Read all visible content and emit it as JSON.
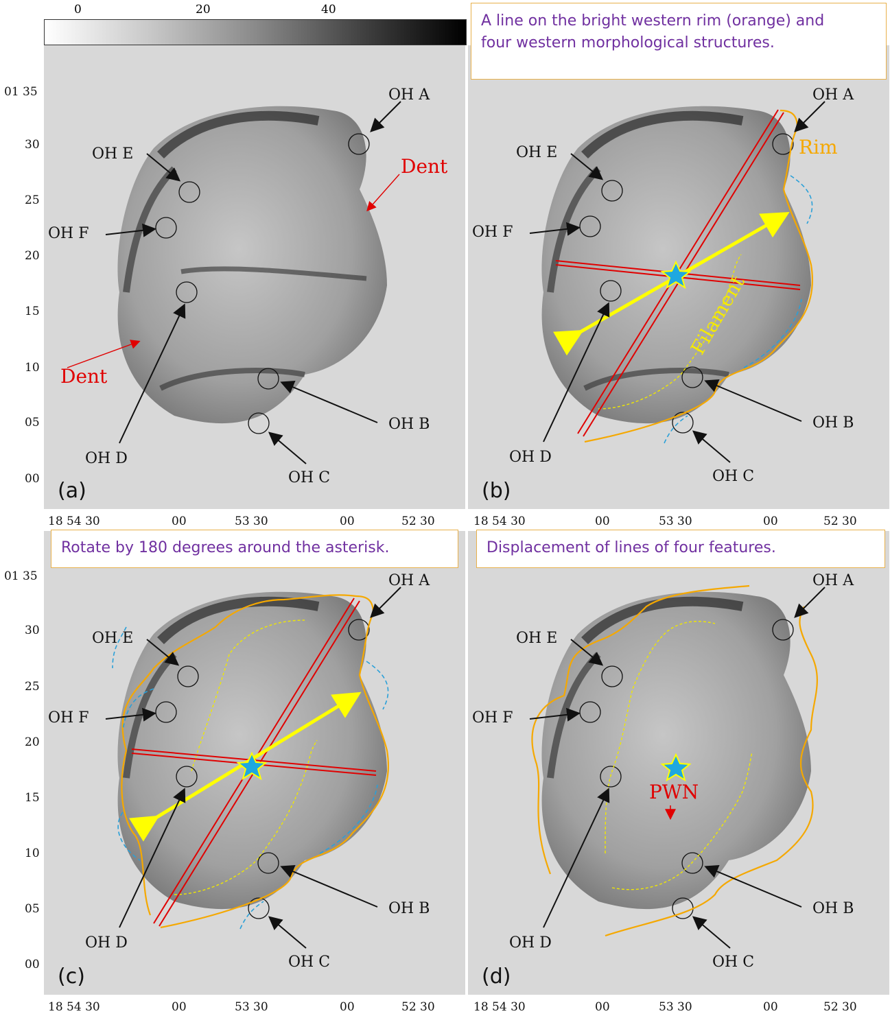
{
  "colorbar": {
    "ticks": [
      "0",
      "20",
      "40"
    ]
  },
  "y_ticks": [
    "01 35",
    "30",
    "25",
    "20",
    "15",
    "10",
    "05",
    "00"
  ],
  "x_ticks": [
    "18 54 30",
    "00",
    "53 30",
    "00",
    "52 30"
  ],
  "panels": {
    "a": {
      "label": "(a)",
      "dent_labels": [
        "Dent",
        "Dent"
      ]
    },
    "b": {
      "label": "(b)",
      "caption_line1": "A line on the bright western rim (orange) and",
      "caption_line2": "four western morphological structures.",
      "rim_label": "Rim",
      "filament_label": "Filament"
    },
    "c": {
      "label": "(c)",
      "caption": "Rotate by 180 degrees around the asterisk."
    },
    "d": {
      "label": "(d)",
      "caption": "Displacement of lines of four features.",
      "pwn_label": "PWN"
    }
  },
  "oh_labels": {
    "A": "OH A",
    "B": "OH B",
    "C": "OH C",
    "D": "OH D",
    "E": "OH E",
    "F": "OH F"
  },
  "colors": {
    "rim": "#f5a800",
    "filament": "#f0e800",
    "axis": "#e00000",
    "arrow": "#ffff00",
    "dashed": "#2aa0d8",
    "star": "#1ea8e0",
    "caption_text": "#7030a0"
  }
}
